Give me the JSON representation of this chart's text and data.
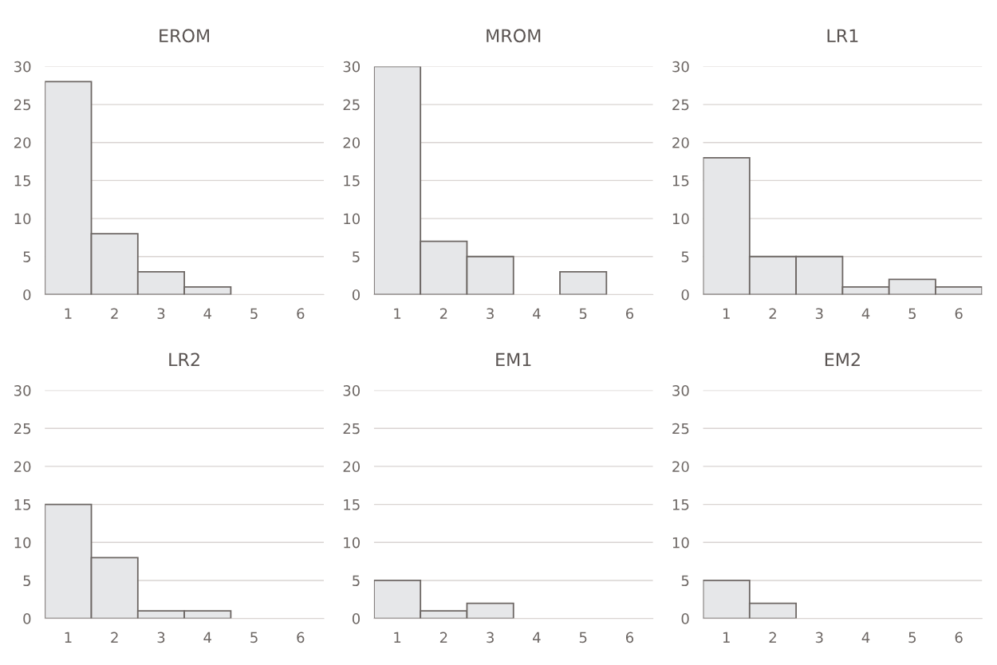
{
  "chart_data": [
    {
      "type": "bar",
      "title": "EROM",
      "categories": [
        "1",
        "2",
        "3",
        "4",
        "5",
        "6"
      ],
      "values": [
        28,
        8,
        3,
        1,
        0,
        0
      ],
      "color": "#e6e7e9",
      "ylim": [
        0,
        30
      ],
      "yticks": [
        0,
        5,
        10,
        15,
        20,
        25,
        30
      ],
      "grid": "y"
    },
    {
      "type": "bar",
      "title": "MROM",
      "categories": [
        "1",
        "2",
        "3",
        "4",
        "5",
        "6"
      ],
      "values": [
        30,
        7,
        5,
        0,
        3,
        0
      ],
      "color": "#e6e7e9",
      "ylim": [
        0,
        30
      ],
      "yticks": [
        0,
        5,
        10,
        15,
        20,
        25,
        30
      ],
      "grid": "y"
    },
    {
      "type": "bar",
      "title": "LR1",
      "categories": [
        "1",
        "2",
        "3",
        "4",
        "5",
        "6"
      ],
      "values": [
        18,
        5,
        5,
        1,
        2,
        1
      ],
      "color": "#e6e7e9",
      "ylim": [
        0,
        30
      ],
      "yticks": [
        0,
        5,
        10,
        15,
        20,
        25,
        30
      ],
      "grid": "y"
    },
    {
      "type": "bar",
      "title": "LR2",
      "categories": [
        "1",
        "2",
        "3",
        "4",
        "5",
        "6"
      ],
      "values": [
        15,
        8,
        1,
        1,
        0,
        0
      ],
      "color": "#e6e7e9",
      "ylim": [
        0,
        30
      ],
      "yticks": [
        0,
        5,
        10,
        15,
        20,
        25,
        30
      ],
      "grid": "y"
    },
    {
      "type": "bar",
      "title": "EM1",
      "categories": [
        "1",
        "2",
        "3",
        "4",
        "5",
        "6"
      ],
      "values": [
        5,
        1,
        2,
        0,
        0,
        0
      ],
      "color": "#e6e7e9",
      "ylim": [
        0,
        30
      ],
      "yticks": [
        0,
        5,
        10,
        15,
        20,
        25,
        30
      ],
      "grid": "y"
    },
    {
      "type": "bar",
      "title": "EM2",
      "categories": [
        "1",
        "2",
        "3",
        "4",
        "5",
        "6"
      ],
      "values": [
        5,
        2,
        0,
        0,
        0,
        0
      ],
      "color": "#e6e7e9",
      "ylim": [
        0,
        30
      ],
      "yticks": [
        0,
        5,
        10,
        15,
        20,
        25,
        30
      ],
      "grid": "y"
    }
  ]
}
